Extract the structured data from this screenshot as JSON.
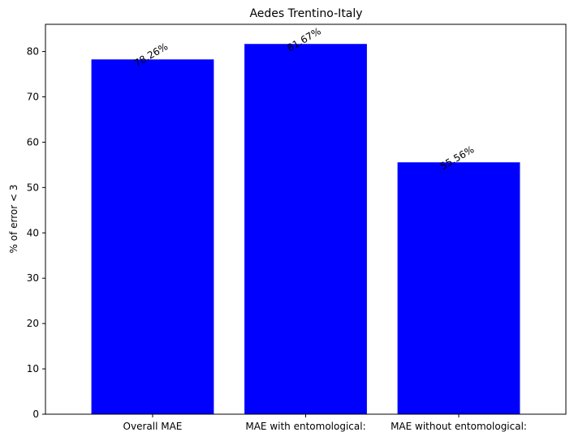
{
  "chart_data": {
    "type": "bar",
    "title": "Aedes Trentino-Italy",
    "xlabel": "",
    "ylabel": "% of error < 3",
    "categories": [
      "Overall MAE",
      "MAE with entomological:",
      "MAE without entomological:"
    ],
    "values": [
      78.26,
      81.67,
      55.56
    ],
    "value_labels": [
      "78.26%",
      "81.67%",
      "55.56%"
    ],
    "ylim": [
      0,
      86
    ],
    "yticks": [
      0,
      10,
      20,
      30,
      40,
      50,
      60,
      70,
      80
    ],
    "bar_color": "#0000ff",
    "grid": false,
    "legend": "none"
  }
}
